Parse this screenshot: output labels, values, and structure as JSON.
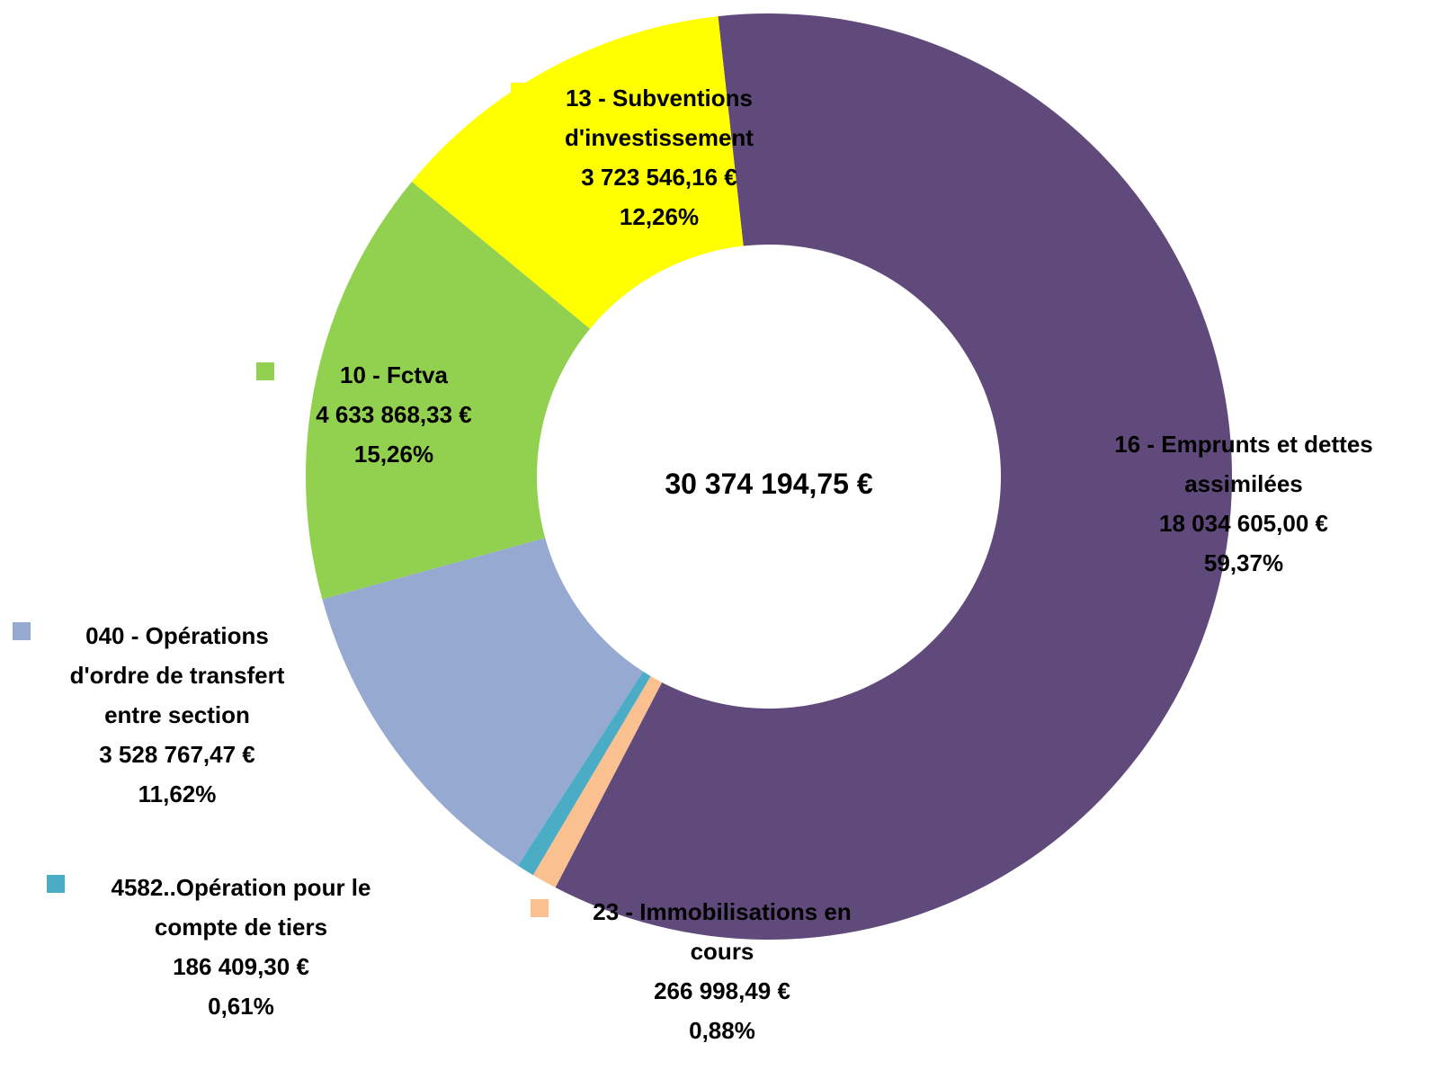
{
  "chart_data": {
    "type": "donut",
    "categories": [
      "16 - Emprunts et dettes assimilées",
      "23 - Immobilisations en cours",
      "4582..Opération pour le compte de tiers",
      "040 - Opérations d'ordre de transfert entre section",
      "10 - Fctva",
      "13 - Subventions d'investissement"
    ],
    "values": [
      18034605.0,
      266998.49,
      186409.3,
      3528767.47,
      4633868.33,
      3723546.16
    ],
    "value_labels": [
      "18 034 605,00 €",
      "266 998,49 €",
      "186 409,30 €",
      "3 528 767,47 €",
      "4 633 868,33 €",
      "3 723 546,16 €"
    ],
    "percentages": [
      59.37,
      0.88,
      0.61,
      11.62,
      15.26,
      12.26
    ],
    "percentage_labels": [
      "59,37%",
      "0,88%",
      "0,61%",
      "11,62%",
      "15,26%",
      "12,26%"
    ],
    "colors": [
      "#604a7b",
      "#fac090",
      "#4bacc6",
      "#95a9d1",
      "#92d050",
      "#ffff00"
    ],
    "total": 30374194.75,
    "total_label": "30 374 194,75 €"
  }
}
